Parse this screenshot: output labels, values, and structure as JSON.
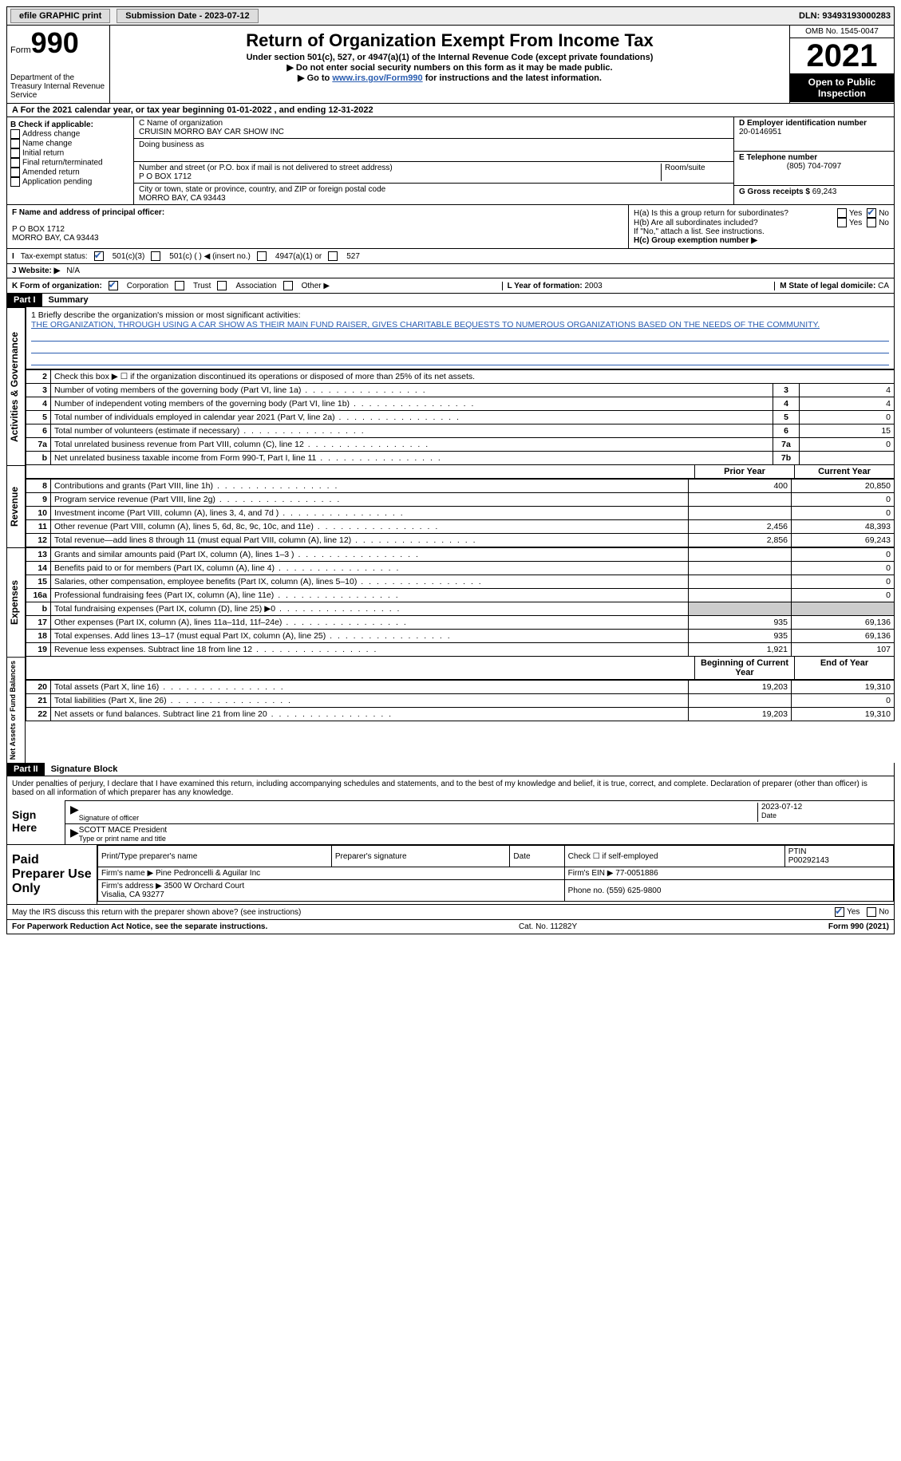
{
  "topbar": {
    "efile": "efile GRAPHIC print",
    "submission": "Submission Date - 2023-07-12",
    "dln": "DLN: 93493193000283"
  },
  "header": {
    "form_word": "Form",
    "form_num": "990",
    "dept": "Department of the Treasury\nInternal Revenue Service",
    "title": "Return of Organization Exempt From Income Tax",
    "sub1": "Under section 501(c), 527, or 4947(a)(1) of the Internal Revenue Code (except private foundations)",
    "sub2": "▶ Do not enter social security numbers on this form as it may be made public.",
    "sub3_pre": "▶ Go to ",
    "sub3_link": "www.irs.gov/Form990",
    "sub3_post": " for instructions and the latest information.",
    "omb": "OMB No. 1545-0047",
    "year": "2021",
    "inspect": "Open to Public Inspection"
  },
  "line_a": "A For the 2021 calendar year, or tax year beginning 01-01-2022   , and ending 12-31-2022",
  "col_b": {
    "title": "B Check if applicable:",
    "items": [
      "Address change",
      "Name change",
      "Initial return",
      "Final return/terminated",
      "Amended return",
      "Application pending"
    ]
  },
  "col_c": {
    "name_lbl": "C Name of organization",
    "name": "CRUISIN MORRO BAY CAR SHOW INC",
    "dba_lbl": "Doing business as",
    "addr_lbl": "Number and street (or P.O. box if mail is not delivered to street address)",
    "room_lbl": "Room/suite",
    "addr": "P O BOX 1712",
    "city_lbl": "City or town, state or province, country, and ZIP or foreign postal code",
    "city": "MORRO BAY, CA  93443"
  },
  "col_d": {
    "ein_lbl": "D Employer identification number",
    "ein": "20-0146951",
    "tel_lbl": "E Telephone number",
    "tel": "(805) 704-7097",
    "gross_lbl": "G Gross receipts $",
    "gross": "69,243"
  },
  "section_f": {
    "f_lbl": "F Name and address of principal officer:",
    "f_addr": "P O BOX 1712\nMORRO BAY, CA  93443",
    "ha_lbl": "H(a)  Is this a group return for subordinates?",
    "hb_lbl": "H(b)  Are all subordinates included?",
    "hb_note": "If \"No,\" attach a list. See instructions.",
    "hc_lbl": "H(c)  Group exemption number ▶"
  },
  "row_i": {
    "label": "Tax-exempt status:",
    "opts": [
      "501(c)(3)",
      "501(c) (  ) ◀ (insert no.)",
      "4947(a)(1) or",
      "527"
    ]
  },
  "row_j": {
    "label": "J  Website: ▶",
    "val": "N/A"
  },
  "row_k": {
    "label": "K Form of organization:",
    "opts": [
      "Corporation",
      "Trust",
      "Association",
      "Other ▶"
    ],
    "l_lbl": "L Year of formation:",
    "l_val": "2003",
    "m_lbl": "M State of legal domicile:",
    "m_val": "CA"
  },
  "part1": {
    "num": "Part I",
    "title": "Summary"
  },
  "mission": {
    "line1": "1  Briefly describe the organization's mission or most significant activities:",
    "text": "THE ORGANIZATION, THROUGH USING A CAR SHOW AS THEIR MAIN FUND RAISER, GIVES CHARITABLE BEQUESTS TO NUMEROUS ORGANIZATIONS BASED ON THE NEEDS OF THE COMMUNITY."
  },
  "side_labels": {
    "gov": "Activities & Governance",
    "rev": "Revenue",
    "exp": "Expenses",
    "net": "Net Assets or Fund Balances"
  },
  "gov_rows": [
    {
      "n": "2",
      "d": "Check this box ▶ ☐  if the organization discontinued its operations or disposed of more than 25% of its net assets.",
      "box": "",
      "v": ""
    },
    {
      "n": "3",
      "d": "Number of voting members of the governing body (Part VI, line 1a)",
      "box": "3",
      "v": "4"
    },
    {
      "n": "4",
      "d": "Number of independent voting members of the governing body (Part VI, line 1b)",
      "box": "4",
      "v": "4"
    },
    {
      "n": "5",
      "d": "Total number of individuals employed in calendar year 2021 (Part V, line 2a)",
      "box": "5",
      "v": "0"
    },
    {
      "n": "6",
      "d": "Total number of volunteers (estimate if necessary)",
      "box": "6",
      "v": "15"
    },
    {
      "n": "7a",
      "d": "Total unrelated business revenue from Part VIII, column (C), line 12",
      "box": "7a",
      "v": "0"
    },
    {
      "n": "b",
      "d": "Net unrelated business taxable income from Form 990-T, Part I, line 11",
      "box": "7b",
      "v": ""
    }
  ],
  "py_cy_hdr": {
    "py": "Prior Year",
    "cy": "Current Year"
  },
  "rev_rows": [
    {
      "n": "8",
      "d": "Contributions and grants (Part VIII, line 1h)",
      "py": "400",
      "cy": "20,850"
    },
    {
      "n": "9",
      "d": "Program service revenue (Part VIII, line 2g)",
      "py": "",
      "cy": "0"
    },
    {
      "n": "10",
      "d": "Investment income (Part VIII, column (A), lines 3, 4, and 7d )",
      "py": "",
      "cy": "0"
    },
    {
      "n": "11",
      "d": "Other revenue (Part VIII, column (A), lines 5, 6d, 8c, 9c, 10c, and 11e)",
      "py": "2,456",
      "cy": "48,393"
    },
    {
      "n": "12",
      "d": "Total revenue—add lines 8 through 11 (must equal Part VIII, column (A), line 12)",
      "py": "2,856",
      "cy": "69,243"
    }
  ],
  "exp_rows": [
    {
      "n": "13",
      "d": "Grants and similar amounts paid (Part IX, column (A), lines 1–3 )",
      "py": "",
      "cy": "0"
    },
    {
      "n": "14",
      "d": "Benefits paid to or for members (Part IX, column (A), line 4)",
      "py": "",
      "cy": "0"
    },
    {
      "n": "15",
      "d": "Salaries, other compensation, employee benefits (Part IX, column (A), lines 5–10)",
      "py": "",
      "cy": "0"
    },
    {
      "n": "16a",
      "d": "Professional fundraising fees (Part IX, column (A), line 11e)",
      "py": "",
      "cy": "0"
    },
    {
      "n": "b",
      "d": "Total fundraising expenses (Part IX, column (D), line 25) ▶0",
      "py": "grey",
      "cy": "grey"
    },
    {
      "n": "17",
      "d": "Other expenses (Part IX, column (A), lines 11a–11d, 11f–24e)",
      "py": "935",
      "cy": "69,136"
    },
    {
      "n": "18",
      "d": "Total expenses. Add lines 13–17 (must equal Part IX, column (A), line 25)",
      "py": "935",
      "cy": "69,136"
    },
    {
      "n": "19",
      "d": "Revenue less expenses. Subtract line 18 from line 12",
      "py": "1,921",
      "cy": "107"
    }
  ],
  "net_hdr": {
    "py": "Beginning of Current Year",
    "cy": "End of Year"
  },
  "net_rows": [
    {
      "n": "20",
      "d": "Total assets (Part X, line 16)",
      "py": "19,203",
      "cy": "19,310"
    },
    {
      "n": "21",
      "d": "Total liabilities (Part X, line 26)",
      "py": "",
      "cy": "0"
    },
    {
      "n": "22",
      "d": "Net assets or fund balances. Subtract line 21 from line 20",
      "py": "19,203",
      "cy": "19,310"
    }
  ],
  "part2": {
    "num": "Part II",
    "title": "Signature Block"
  },
  "sig": {
    "perjury": "Under penalties of perjury, I declare that I have examined this return, including accompanying schedules and statements, and to the best of my knowledge and belief, it is true, correct, and complete. Declaration of preparer (other than officer) is based on all information of which preparer has any knowledge.",
    "sign_here": "Sign Here",
    "sig_officer": "Signature of officer",
    "date": "Date",
    "date_val": "2023-07-12",
    "name": "SCOTT MACE President",
    "name_lbl": "Type or print name and title"
  },
  "prep": {
    "title": "Paid Preparer Use Only",
    "h1": "Print/Type preparer's name",
    "h2": "Preparer's signature",
    "h3": "Date",
    "h4": "Check ☐ if self-employed",
    "h5": "PTIN",
    "ptin": "P00292143",
    "firm_lbl": "Firm's name   ▶",
    "firm": "Pine Pedroncelli & Aguilar Inc",
    "ein_lbl": "Firm's EIN ▶",
    "ein": "77-0051886",
    "addr_lbl": "Firm's address ▶",
    "addr": "3500 W Orchard Court\nVisalia, CA  93277",
    "phone_lbl": "Phone no.",
    "phone": "(559) 625-9800",
    "discuss": "May the IRS discuss this return with the preparer shown above? (see instructions)"
  },
  "footer": {
    "l": "For Paperwork Reduction Act Notice, see the separate instructions.",
    "m": "Cat. No. 11282Y",
    "r": "Form 990 (2021)"
  }
}
